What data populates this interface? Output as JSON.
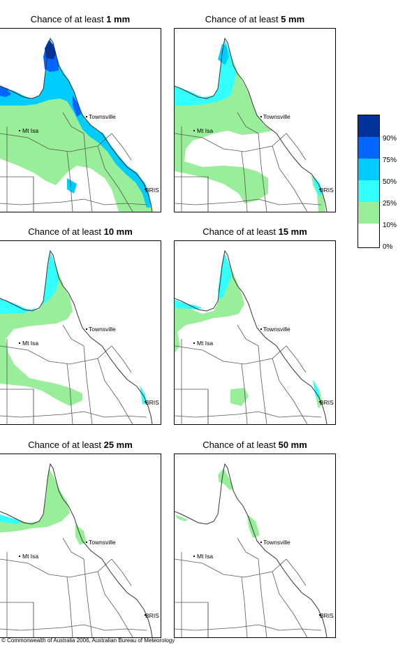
{
  "title_prefix": "Chance of at least",
  "panels": [
    {
      "amount": "1 mm"
    },
    {
      "amount": "5 mm"
    },
    {
      "amount": "10 mm"
    },
    {
      "amount": "15 mm"
    },
    {
      "amount": "25 mm"
    },
    {
      "amount": "50 mm"
    }
  ],
  "place_labels": {
    "townsville": "Townsville",
    "mt_isa": "Mt Isa",
    "brisbane": "BRIS"
  },
  "legend": {
    "ticks": [
      "90%",
      "75%",
      "50%",
      "25%",
      "10%",
      "0%"
    ],
    "colors": [
      "#003399",
      "#0066ff",
      "#00ccff",
      "#33ffff",
      "#99ee99",
      "#ffffff"
    ]
  },
  "copyright": "© Commonwealth of Australia 2006, Australian Bureau of Meteorology"
}
